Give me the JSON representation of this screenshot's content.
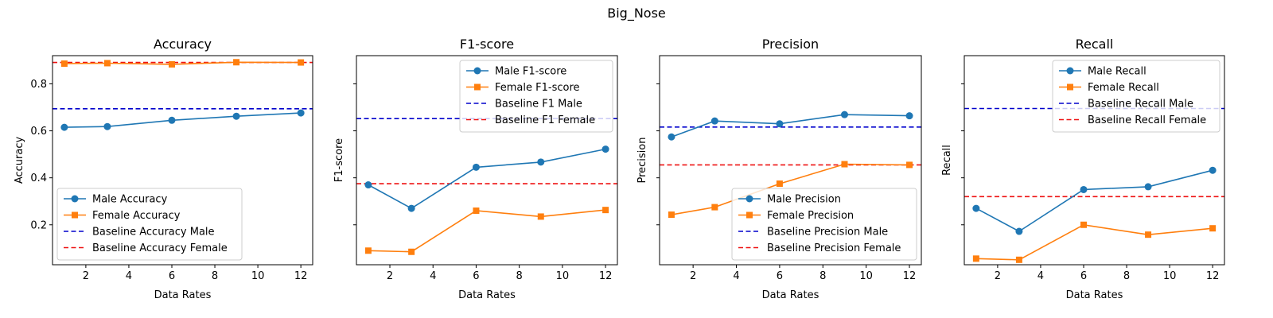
{
  "figure": {
    "suptitle": "Big_Nose"
  },
  "chart_data": [
    {
      "type": "line",
      "title": "Accuracy",
      "xlabel": "Data Rates",
      "ylabel": "Accuracy",
      "x": [
        1,
        3,
        6,
        9,
        12
      ],
      "xlim": [
        0.45,
        12.55
      ],
      "ylim": [
        0.03,
        0.92
      ],
      "xticks": [
        2,
        4,
        6,
        8,
        10,
        12
      ],
      "yticks": [
        0.2,
        0.4,
        0.6,
        0.8
      ],
      "ytick_labels_visible": true,
      "legend_position": "lower-left",
      "series": [
        {
          "name": "Male Accuracy",
          "values": [
            0.615,
            0.618,
            0.645,
            0.662,
            0.676
          ],
          "color": "#1f77b4",
          "marker": "circle",
          "style": "solid"
        },
        {
          "name": "Female Accuracy",
          "values": [
            0.886,
            0.888,
            0.883,
            0.892,
            0.891
          ],
          "color": "#ff7f0e",
          "marker": "square",
          "style": "solid"
        },
        {
          "name": "Baseline Accuracy Male",
          "value": 0.694,
          "color": "#0000cc",
          "style": "dashed"
        },
        {
          "name": "Baseline Accuracy Female",
          "value": 0.891,
          "color": "#ee1111",
          "style": "dashed"
        }
      ]
    },
    {
      "type": "line",
      "title": "F1-score",
      "xlabel": "Data Rates",
      "ylabel": "F1-score",
      "x": [
        1,
        3,
        6,
        9,
        12
      ],
      "xlim": [
        0.45,
        12.55
      ],
      "ylim": [
        0.03,
        0.92
      ],
      "xticks": [
        2,
        4,
        6,
        8,
        10,
        12
      ],
      "yticks": [
        0.2,
        0.4,
        0.6,
        0.8
      ],
      "ytick_labels_visible": false,
      "legend_position": "upper-right",
      "series": [
        {
          "name": "Male F1-score",
          "values": [
            0.37,
            0.27,
            0.445,
            0.467,
            0.522
          ],
          "color": "#1f77b4",
          "marker": "circle",
          "style": "solid"
        },
        {
          "name": "Female F1-score",
          "values": [
            0.09,
            0.085,
            0.26,
            0.235,
            0.263
          ],
          "color": "#ff7f0e",
          "marker": "square",
          "style": "solid"
        },
        {
          "name": "Baseline F1 Male",
          "value": 0.652,
          "color": "#0000cc",
          "style": "dashed"
        },
        {
          "name": "Baseline F1 Female",
          "value": 0.375,
          "color": "#ee1111",
          "style": "dashed"
        }
      ]
    },
    {
      "type": "line",
      "title": "Precision",
      "xlabel": "Data Rates",
      "ylabel": "Precision",
      "x": [
        1,
        3,
        6,
        9,
        12
      ],
      "xlim": [
        0.45,
        12.55
      ],
      "ylim": [
        0.03,
        0.92
      ],
      "xticks": [
        2,
        4,
        6,
        8,
        10,
        12
      ],
      "yticks": [
        0.2,
        0.4,
        0.6,
        0.8
      ],
      "ytick_labels_visible": false,
      "legend_position": "lower-right",
      "series": [
        {
          "name": "Male Precision",
          "values": [
            0.574,
            0.642,
            0.63,
            0.669,
            0.664
          ],
          "color": "#1f77b4",
          "marker": "circle",
          "style": "solid"
        },
        {
          "name": "Female Precision",
          "values": [
            0.243,
            0.275,
            0.375,
            0.458,
            0.455
          ],
          "color": "#ff7f0e",
          "marker": "square",
          "style": "solid"
        },
        {
          "name": "Baseline Precision Male",
          "value": 0.616,
          "color": "#0000cc",
          "style": "dashed"
        },
        {
          "name": "Baseline Precision Female",
          "value": 0.455,
          "color": "#ee1111",
          "style": "dashed"
        }
      ]
    },
    {
      "type": "line",
      "title": "Recall",
      "xlabel": "Data Rates",
      "ylabel": "Recall",
      "x": [
        1,
        3,
        6,
        9,
        12
      ],
      "xlim": [
        0.45,
        12.55
      ],
      "ylim": [
        0.03,
        0.92
      ],
      "xticks": [
        2,
        4,
        6,
        8,
        10,
        12
      ],
      "yticks": [
        0.2,
        0.4,
        0.6,
        0.8
      ],
      "ytick_labels_visible": false,
      "legend_position": "upper-right",
      "series": [
        {
          "name": "Male Recall",
          "values": [
            0.27,
            0.172,
            0.35,
            0.362,
            0.432
          ],
          "color": "#1f77b4",
          "marker": "circle",
          "style": "solid"
        },
        {
          "name": "Female Recall",
          "values": [
            0.056,
            0.051,
            0.2,
            0.158,
            0.185
          ],
          "color": "#ff7f0e",
          "marker": "square",
          "style": "solid"
        },
        {
          "name": "Baseline Recall Male",
          "value": 0.695,
          "color": "#0000cc",
          "style": "dashed"
        },
        {
          "name": "Baseline Recall Female",
          "value": 0.32,
          "color": "#ee1111",
          "style": "dashed"
        }
      ]
    }
  ]
}
